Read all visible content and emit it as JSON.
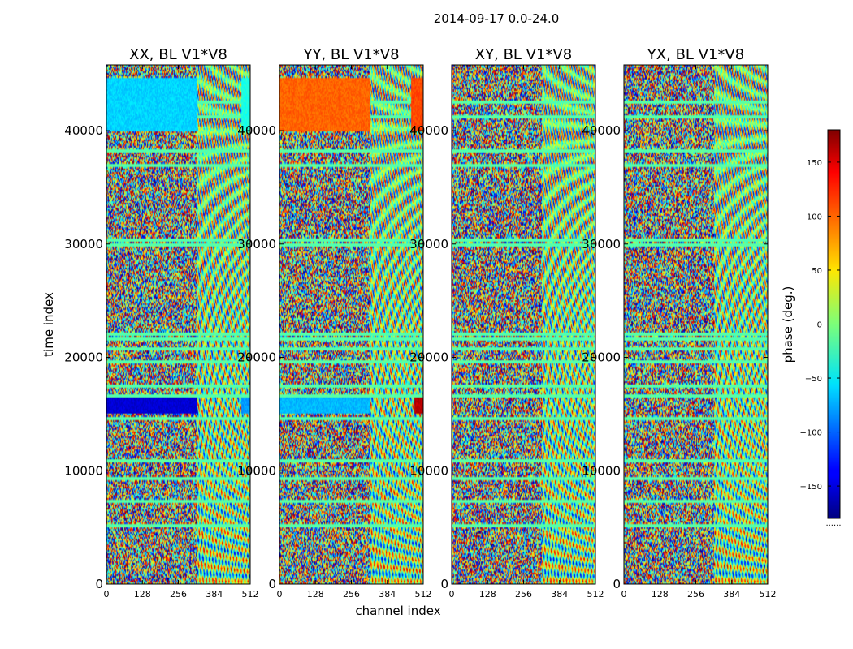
{
  "figure": {
    "suptitle": "2014-09-17 0.0-24.0",
    "xlabel": "channel index",
    "ylabel": "time index",
    "colorbar_label": "phase (deg.)",
    "colorbar_extra": "......"
  },
  "chart_data": {
    "type": "heatmap",
    "title": "2014-09-17 0.0-24.0",
    "xlabel": "channel index",
    "ylabel": "time index",
    "xlim": [
      0,
      512
    ],
    "ylim": [
      0,
      45800
    ],
    "x_ticks": [
      0,
      128,
      256,
      384,
      512
    ],
    "y_ticks": [
      0,
      10000,
      20000,
      30000,
      40000
    ],
    "colormap": "jet",
    "colorbar": {
      "label": "phase (deg.)",
      "range": [
        -180,
        180
      ],
      "ticks": [
        -150,
        -100,
        -50,
        0,
        50,
        100,
        150
      ],
      "tick_labels": [
        "−150",
        "−100",
        "−50",
        "0",
        "50",
        "100",
        "150"
      ]
    },
    "panels": [
      {
        "title": "XX, BL V1*V8",
        "flag_rows": [
          42600,
          41400,
          38400,
          37100,
          30500,
          30100,
          22200,
          21800,
          20900,
          19800,
          17600,
          16800,
          14800,
          11000,
          9500,
          7500,
          5300
        ],
        "bands": [
          {
            "t0": 40000,
            "t1": 44600,
            "c0": 0,
            "c1": 325,
            "phase": -60
          },
          {
            "t0": 40000,
            "t1": 44600,
            "c0": 480,
            "c1": 512,
            "phase": -35
          },
          {
            "t0": 15000,
            "t1": 16500,
            "c0": 0,
            "c1": 325,
            "phase": -150
          },
          {
            "t0": 15000,
            "t1": 16500,
            "c0": 480,
            "c1": 512,
            "phase": -80
          }
        ]
      },
      {
        "title": "YY, BL V1*V8",
        "flag_rows": [
          42600,
          41400,
          38400,
          37100,
          30500,
          30100,
          22200,
          21800,
          20900,
          19800,
          17600,
          16800,
          14800,
          11000,
          9500,
          7500,
          5300
        ],
        "bands": [
          {
            "t0": 40000,
            "t1": 44600,
            "c0": 0,
            "c1": 325,
            "phase": 100
          },
          {
            "t0": 40000,
            "t1": 44600,
            "c0": 470,
            "c1": 512,
            "phase": 110
          },
          {
            "t0": 15000,
            "t1": 16500,
            "c0": 0,
            "c1": 325,
            "phase": -70
          },
          {
            "t0": 15000,
            "t1": 16500,
            "c0": 480,
            "c1": 512,
            "phase": 160
          }
        ]
      },
      {
        "title": "XY, BL V1*V8",
        "flag_rows": [
          42600,
          41400,
          38400,
          37100,
          30500,
          30100,
          22200,
          21800,
          20900,
          19800,
          17600,
          16800,
          14800,
          11000,
          9500,
          7500,
          5300
        ],
        "bands": []
      },
      {
        "title": "YX, BL V1*V8",
        "flag_rows": [
          42600,
          41400,
          38400,
          37100,
          30500,
          30100,
          22200,
          21800,
          20900,
          19800,
          17600,
          16800,
          14800,
          11000,
          9500,
          7500,
          5300
        ],
        "bands": []
      }
    ]
  }
}
